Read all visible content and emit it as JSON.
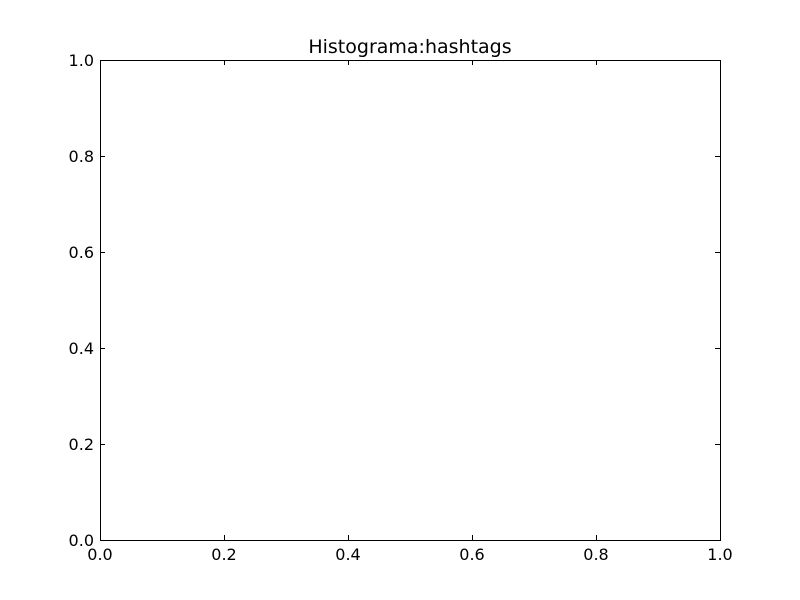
{
  "chart_data": {
    "type": "bar",
    "title": "Histograma:hashtags",
    "xlabel": "",
    "ylabel": "",
    "xlim": [
      0.0,
      1.0
    ],
    "ylim": [
      0.0,
      1.0
    ],
    "x_ticks": [
      0.0,
      0.2,
      0.4,
      0.6,
      0.8,
      1.0
    ],
    "y_ticks": [
      0.0,
      0.2,
      0.4,
      0.6,
      0.8,
      1.0
    ],
    "x_tick_labels": [
      "0.0",
      "0.2",
      "0.4",
      "0.6",
      "0.8",
      "1.0"
    ],
    "y_tick_labels": [
      "0.0",
      "0.2",
      "0.4",
      "0.6",
      "0.8",
      "1.0"
    ],
    "categories": [],
    "values": [],
    "grid": false,
    "colors": {
      "axes": "#000000",
      "background": "#ffffff"
    }
  }
}
